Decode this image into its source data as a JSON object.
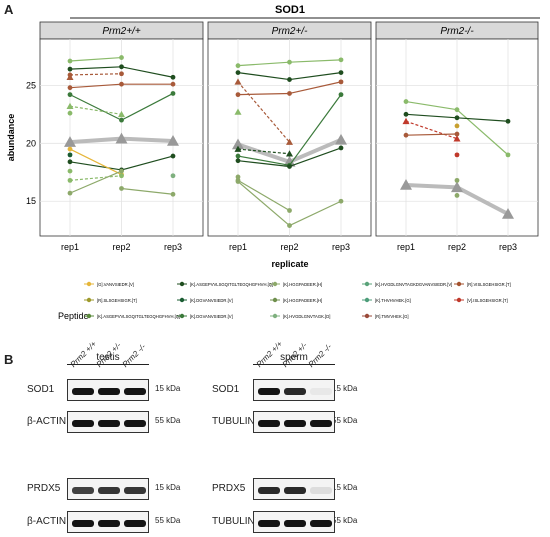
{
  "panels": {
    "a": "A",
    "b": "B"
  },
  "chart_data": {
    "type": "line",
    "title": "SOD1",
    "facets": [
      "Prm2+/+",
      "Prm2+/-",
      "Prm2-/-"
    ],
    "x": [
      "rep1",
      "rep2",
      "rep3"
    ],
    "xlabel": "replicate",
    "ylabel": "abundance",
    "ylim": [
      12,
      29
    ],
    "yticks": [
      15,
      20,
      25
    ],
    "grid": true,
    "legend_position": "bottom",
    "legend_title": "Peptide",
    "peptides": [
      {
        "name": "[G].VANVSIEDR.[V]",
        "color": "#e6b63a"
      },
      {
        "name": "[R].SLSGEHSIGR.[T]",
        "color": "#9e9a2c"
      },
      {
        "name": "[K].ASGEPVVLSGQITGLTEGQHGFHVH.[Q]",
        "color": "#5a8a3c"
      },
      {
        "name": "[K].ASGEPVVLSGQITGLTEGQHGFHVH.[Q]",
        "color": "#1f4d1f"
      },
      {
        "name": "[K].DGVANVSIEDR.[V]",
        "color": "#1a5c32"
      },
      {
        "name": "[K].DGVANVSIEDR.[V]",
        "color": "#3b7a3b"
      },
      {
        "name": "[K].HGGPADEER.[H]",
        "color": "#8da96a"
      },
      {
        "name": "[K].HGGPADEER.[H]",
        "color": "#6f8f4d"
      },
      {
        "name": "[K].HVGDLGNVTAGK.[D]",
        "color": "#7fb07f"
      },
      {
        "name": "[K].HVGDLGNVTAGKDGVANVSIEDR.[V]",
        "color": "#5aa37a"
      },
      {
        "name": "[K].THVHVHEK.[G]",
        "color": "#4d9d7a"
      },
      {
        "name": "[R].TMVVHEK.[G]",
        "color": "#9a4a3a"
      },
      {
        "name": "[R].VISLSGEHSIGR.[T]",
        "color": "#a3522e"
      },
      {
        "name": "[V].ISLSGEHSIGR.[T]",
        "color": "#c0392b"
      }
    ],
    "series": [
      {
        "facet": 0,
        "color": "#1f4d1f",
        "dash": false,
        "shape": "circle",
        "values": [
          26.4,
          26.6,
          25.7
        ]
      },
      {
        "facet": 0,
        "color": "#8aba6a",
        "dash": false,
        "shape": "circle",
        "values": [
          27.1,
          27.4,
          null
        ]
      },
      {
        "facet": 0,
        "color": "#a85a3a",
        "dash": true,
        "shape": "circle",
        "values": [
          25.9,
          26.0,
          null
        ]
      },
      {
        "facet": 0,
        "color": "#a85a3a",
        "dash": false,
        "shape": "circle",
        "values": [
          24.8,
          25.1,
          25.1
        ]
      },
      {
        "facet": 0,
        "color": "#3b7a3b",
        "dash": false,
        "shape": "circle",
        "values": [
          24.2,
          22.0,
          24.3
        ]
      },
      {
        "facet": 0,
        "color": "#8aba6a",
        "dash": true,
        "shape": "triangle",
        "values": [
          23.2,
          22.5,
          null
        ]
      },
      {
        "facet": 0,
        "color": "#bbbbbb",
        "dash": false,
        "shape": "triangle",
        "values": [
          20.1,
          20.4,
          20.2
        ],
        "width": 4
      },
      {
        "facet": 0,
        "color": "#1f4d1f",
        "dash": false,
        "shape": "circle",
        "values": [
          18.4,
          17.7,
          18.9
        ]
      },
      {
        "facet": 0,
        "color": "#e6b63a",
        "dash": false,
        "shape": "circle",
        "values": [
          19.5,
          17.3,
          null
        ]
      },
      {
        "facet": 0,
        "color": "#8aba6a",
        "dash": true,
        "shape": "circle",
        "values": [
          16.8,
          17.2,
          null
        ]
      },
      {
        "facet": 0,
        "color": "#8da96a",
        "dash": false,
        "shape": "circle",
        "values": [
          15.7,
          17.6,
          null
        ]
      },
      {
        "facet": 0,
        "color": "#8da96a",
        "dash": false,
        "shape": "circle",
        "values": [
          null,
          16.1,
          15.6
        ]
      },
      {
        "facet": 0,
        "color": "#1a5c32",
        "dash": false,
        "shape": "circle",
        "values": [
          null,
          null,
          null
        ]
      },
      {
        "facet": 1,
        "color": "#8aba6a",
        "dash": false,
        "shape": "circle",
        "values": [
          26.7,
          27.0,
          27.2
        ]
      },
      {
        "facet": 1,
        "color": "#1f4d1f",
        "dash": false,
        "shape": "circle",
        "values": [
          26.1,
          25.5,
          26.1
        ]
      },
      {
        "facet": 1,
        "color": "#a85a3a",
        "dash": true,
        "shape": "triangle",
        "values": [
          25.3,
          20.1,
          null
        ]
      },
      {
        "facet": 1,
        "color": "#a85a3a",
        "dash": false,
        "shape": "circle",
        "values": [
          24.2,
          24.3,
          25.3
        ]
      },
      {
        "facet": 1,
        "color": "#bbbbbb",
        "dash": false,
        "shape": "triangle",
        "values": [
          19.9,
          18.4,
          20.3
        ],
        "width": 4
      },
      {
        "facet": 1,
        "color": "#1f4d1f",
        "dash": true,
        "shape": "triangle",
        "values": [
          19.5,
          19.1,
          null
        ]
      },
      {
        "facet": 1,
        "color": "#3b7a3b",
        "dash": false,
        "shape": "circle",
        "values": [
          18.9,
          18.1,
          24.2
        ]
      },
      {
        "facet": 1,
        "color": "#1f4d1f",
        "dash": false,
        "shape": "circle",
        "values": [
          18.5,
          18.0,
          19.6
        ]
      },
      {
        "facet": 1,
        "color": "#8da96a",
        "dash": false,
        "shape": "circle",
        "values": [
          16.8,
          14.2,
          null
        ]
      },
      {
        "facet": 1,
        "color": "#8da96a",
        "dash": false,
        "shape": "circle",
        "values": [
          16.7,
          12.9,
          15.0
        ]
      },
      {
        "facet": 2,
        "color": "#8aba6a",
        "dash": false,
        "shape": "circle",
        "values": [
          23.6,
          22.9,
          19.0
        ]
      },
      {
        "facet": 2,
        "color": "#1f4d1f",
        "dash": false,
        "shape": "circle",
        "values": [
          22.5,
          22.2,
          21.9
        ]
      },
      {
        "facet": 2,
        "color": "#c0392b",
        "dash": true,
        "shape": "triangle",
        "values": [
          21.9,
          20.4,
          null
        ]
      },
      {
        "facet": 2,
        "color": "#a85a3a",
        "dash": false,
        "shape": "circle",
        "values": [
          20.7,
          20.8,
          null
        ]
      },
      {
        "facet": 2,
        "color": "#bbbbbb",
        "dash": false,
        "shape": "triangle",
        "values": [
          16.4,
          16.2,
          13.9
        ],
        "width": 4
      }
    ],
    "extra_points": [
      {
        "facet": 0,
        "x": 0,
        "y": 25.7,
        "color": "#a85a3a",
        "shape": "triangle"
      },
      {
        "facet": 0,
        "x": 0,
        "y": 22.6,
        "color": "#8aba6a",
        "shape": "circle"
      },
      {
        "facet": 0,
        "x": 0,
        "y": 17.6,
        "color": "#8aba6a",
        "shape": "circle"
      },
      {
        "facet": 0,
        "x": 0,
        "y": 19.0,
        "color": "#1a5c32",
        "shape": "circle"
      },
      {
        "facet": 0,
        "x": 2,
        "y": 17.2,
        "color": "#7fb07f",
        "shape": "circle"
      },
      {
        "facet": 1,
        "x": 0,
        "y": 22.7,
        "color": "#8aba6a",
        "shape": "triangle"
      },
      {
        "facet": 1,
        "x": 0,
        "y": 17.1,
        "color": "#8da96a",
        "shape": "circle"
      },
      {
        "facet": 2,
        "x": 1,
        "y": 21.5,
        "color": "#c8a030",
        "shape": "circle"
      },
      {
        "facet": 2,
        "x": 1,
        "y": 19.0,
        "color": "#c0392b",
        "shape": "circle"
      },
      {
        "facet": 2,
        "x": 1,
        "y": 16.8,
        "color": "#8da96a",
        "shape": "circle"
      },
      {
        "facet": 2,
        "x": 1,
        "y": 15.5,
        "color": "#8da96a",
        "shape": "circle"
      }
    ]
  },
  "blots": {
    "groups": [
      {
        "tissue": "testis",
        "lanes": [
          "Prm2 +/+",
          "Prm2 +/-",
          "Prm2 -/-"
        ]
      },
      {
        "tissue": "sperm",
        "lanes": [
          "Prm2 +/+",
          "Prm2 +/-",
          "Prm2 -/-"
        ]
      }
    ],
    "rows": [
      {
        "left_label": "SOD1",
        "right_label": "SOD1",
        "kda": "15 kDa",
        "testis": [
          1,
          1,
          1
        ],
        "sperm": [
          1,
          0.9,
          0.05
        ]
      },
      {
        "left_label": "β-ACTIN",
        "right_label": "TUBULIN",
        "kda": "55 kDa",
        "testis": [
          1,
          1,
          1
        ],
        "sperm": [
          1,
          1,
          1
        ]
      },
      {
        "left_label": "PRDX5",
        "right_label": "PRDX5",
        "kda": "15 kDa",
        "testis": [
          0.8,
          0.85,
          0.85
        ],
        "sperm": [
          0.9,
          0.9,
          0.1
        ]
      },
      {
        "left_label": "β-ACTIN",
        "right_label": "TUBULIN",
        "kda": "55 kDa",
        "testis": [
          1,
          1,
          1
        ],
        "sperm": [
          1,
          1,
          1
        ]
      }
    ]
  }
}
